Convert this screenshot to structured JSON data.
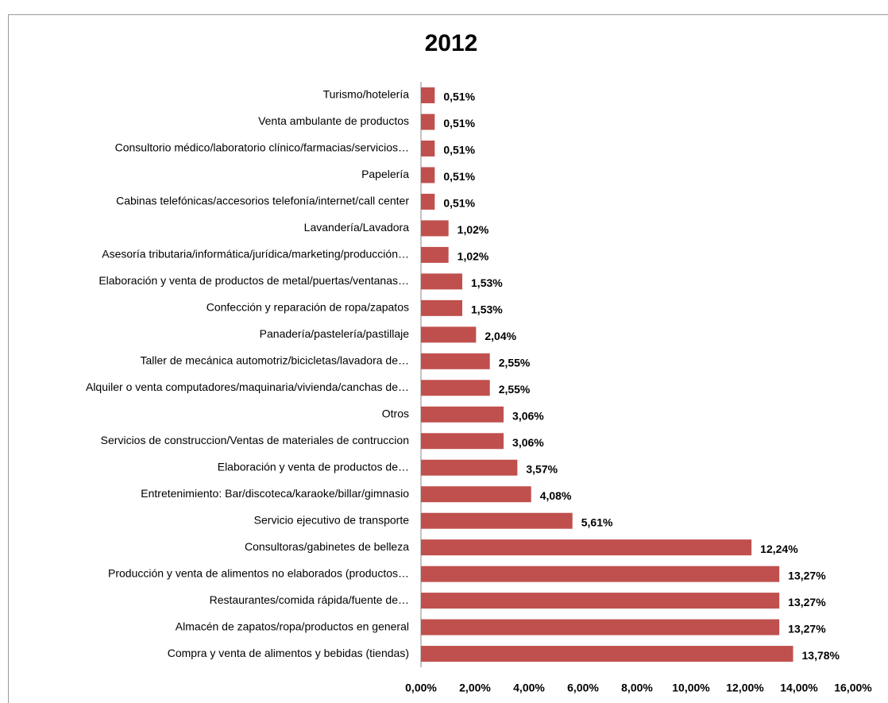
{
  "chart_data": {
    "type": "hbar",
    "title": "2012",
    "color": "#c0504d",
    "categories": [
      "Turismo/hotelería",
      "Venta ambulante de productos",
      "Consultorio médico/laboratorio clínico/farmacias/servicios…",
      "Papelería",
      "Cabinas telefónicas/accesorios telefonía/internet/call center",
      "Lavandería/Lavadora",
      "Asesoría tributaria/informática/jurídica/marketing/producción…",
      "Elaboración y venta de productos de metal/puertas/ventanas…",
      "Confección y reparación de ropa/zapatos",
      "Panadería/pastelería/pastillaje",
      "Taller de mecánica automotriz/bicicletas/lavadora de…",
      "Alquiler o venta computadores/maquinaria/vivienda/canchas de…",
      "Otros",
      "Servicios de construccion/Ventas de materiales de contruccion",
      "Elaboración y venta de productos de…",
      "Entretenimiento: Bar/discoteca/karaoke/billar/gimnasio",
      "Servicio ejecutivo de transporte",
      "Consultoras/gabinetes de belleza",
      "Producción y venta de alimentos no elaborados (productos…",
      "Restaurantes/comida rápida/fuente de…",
      "Almacén de zapatos/ropa/productos en general",
      "Compra y venta de alimentos y bebidas (tiendas)"
    ],
    "values": [
      0.51,
      0.51,
      0.51,
      0.51,
      0.51,
      1.02,
      1.02,
      1.53,
      1.53,
      2.04,
      2.55,
      2.55,
      3.06,
      3.06,
      3.57,
      4.08,
      5.61,
      12.24,
      13.27,
      13.27,
      13.27,
      13.78
    ],
    "value_labels": [
      "0,51%",
      "0,51%",
      "0,51%",
      "0,51%",
      "0,51%",
      "1,02%",
      "1,02%",
      "1,53%",
      "1,53%",
      "2,04%",
      "2,55%",
      "2,55%",
      "3,06%",
      "3,06%",
      "3,57%",
      "4,08%",
      "5,61%",
      "12,24%",
      "13,27%",
      "13,27%",
      "13,27%",
      "13,78%"
    ],
    "xlim": [
      0,
      16
    ],
    "xticks": [
      {
        "value": 0,
        "label": "0,00%"
      },
      {
        "value": 2,
        "label": "2,00%"
      },
      {
        "value": 4,
        "label": "4,00%"
      },
      {
        "value": 6,
        "label": "6,00%"
      },
      {
        "value": 8,
        "label": "8,00%"
      },
      {
        "value": 10,
        "label": "10,00%"
      },
      {
        "value": 12,
        "label": "12,00%"
      },
      {
        "value": 14,
        "label": "14,00%"
      },
      {
        "value": 16,
        "label": "16,00%"
      }
    ],
    "grid": false
  }
}
